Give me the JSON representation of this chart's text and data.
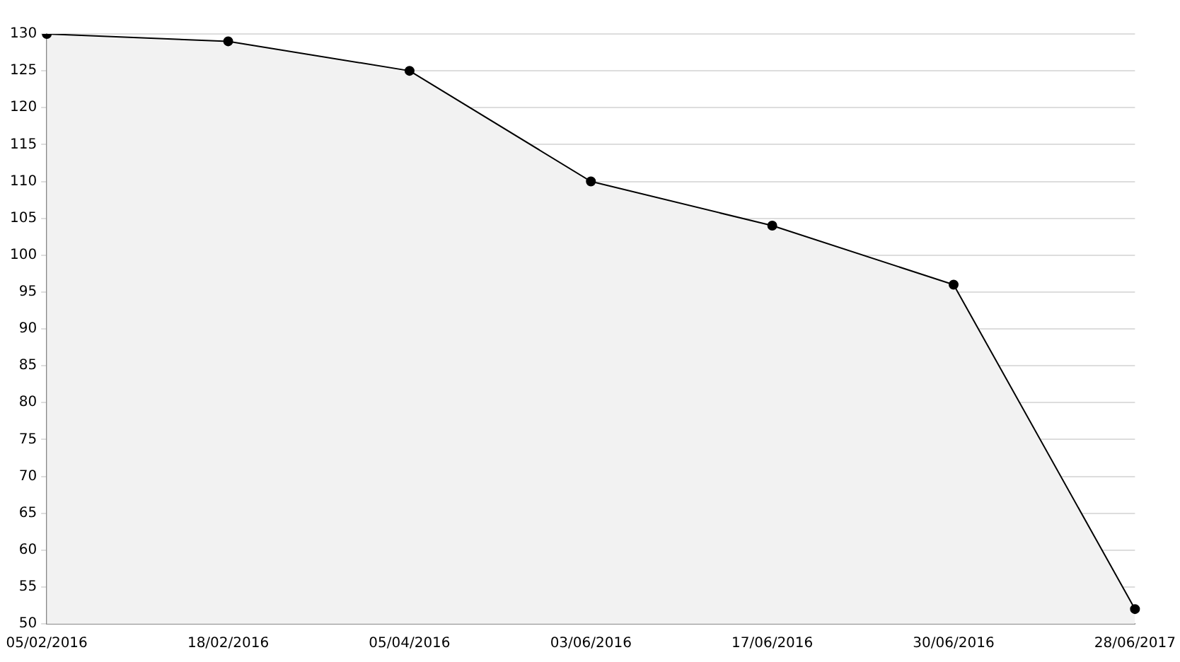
{
  "chart_data": {
    "type": "area",
    "categories": [
      "05/02/2016",
      "18/02/2016",
      "05/04/2016",
      "03/06/2016",
      "17/06/2016",
      "30/06/2016",
      "28/06/2017"
    ],
    "series": [
      {
        "color": "#000000",
        "values": [
          130,
          129,
          125,
          110,
          104,
          96,
          52
        ]
      }
    ],
    "ylim": [
      50,
      130
    ],
    "yticks": [
      50,
      55,
      60,
      65,
      70,
      75,
      80,
      85,
      90,
      95,
      100,
      105,
      110,
      115,
      120,
      125,
      130
    ],
    "grid": "y",
    "legend": false,
    "marker": "circle",
    "line_style": "solid"
  }
}
